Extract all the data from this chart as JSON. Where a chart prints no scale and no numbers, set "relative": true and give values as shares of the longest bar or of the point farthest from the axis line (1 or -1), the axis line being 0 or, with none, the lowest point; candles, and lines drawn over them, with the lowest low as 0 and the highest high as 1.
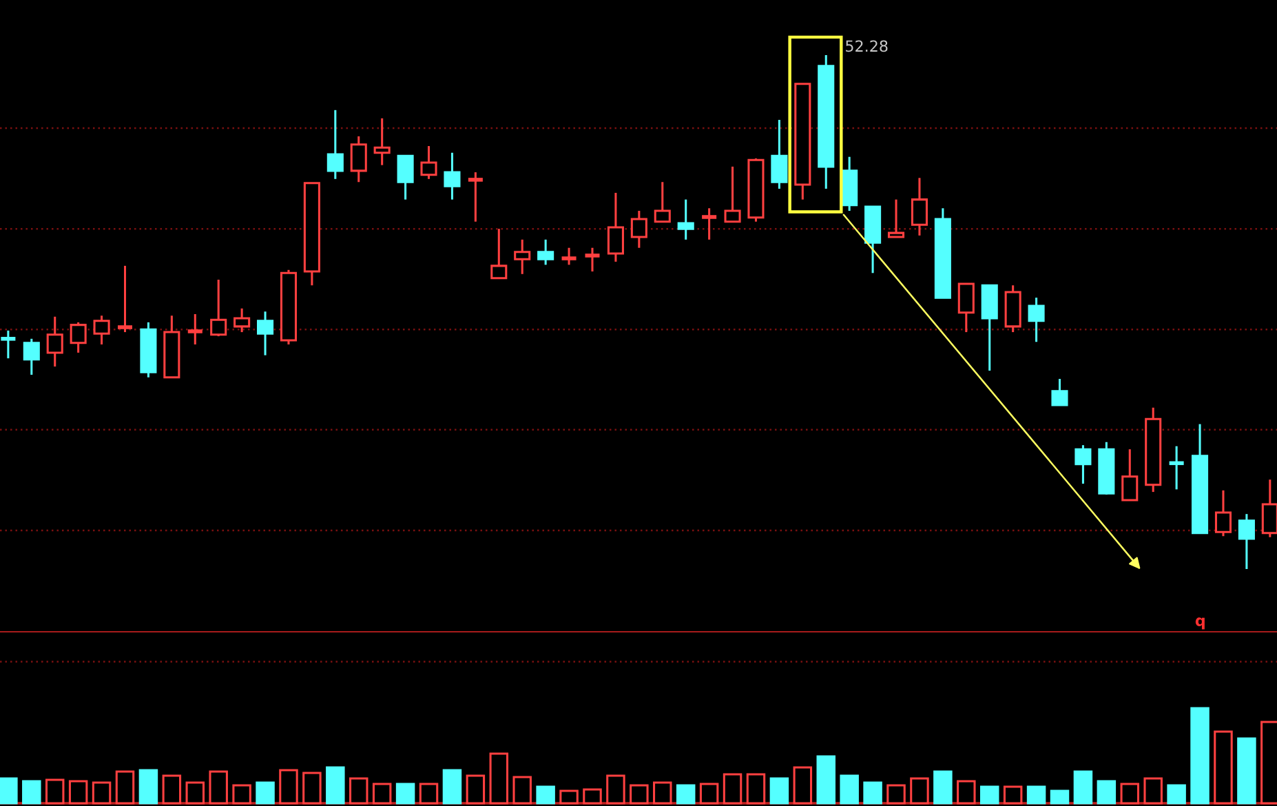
{
  "chart_data": [
    {
      "type": "candlestick",
      "relative": true,
      "categories": [
        null,
        null,
        null,
        null,
        null,
        null,
        null,
        null,
        null,
        null,
        null,
        null,
        null,
        null,
        null,
        null,
        null,
        null,
        null,
        null,
        null,
        null,
        null,
        null,
        null,
        null,
        null,
        null,
        null,
        null,
        null,
        null,
        null,
        null,
        null,
        null,
        null,
        null,
        null,
        null,
        null,
        null,
        null,
        null,
        null,
        null,
        null,
        null,
        null,
        null,
        null,
        null,
        null,
        null,
        null
      ],
      "ohlc": [
        [
          0.448,
          0.464,
          0.41,
          0.448
        ],
        [
          0.44,
          0.448,
          0.378,
          0.408
        ],
        [
          0.421,
          0.491,
          0.394,
          0.456
        ],
        [
          0.44,
          0.48,
          0.421,
          0.475
        ],
        [
          0.458,
          0.493,
          0.437,
          0.483
        ],
        [
          0.469,
          0.59,
          0.461,
          0.472
        ],
        [
          0.466,
          0.48,
          0.373,
          0.383
        ],
        [
          0.373,
          0.493,
          0.373,
          0.461
        ],
        [
          0.461,
          0.496,
          0.437,
          0.464
        ],
        [
          0.456,
          0.563,
          0.453,
          0.485
        ],
        [
          0.472,
          0.507,
          0.461,
          0.488
        ],
        [
          0.483,
          0.501,
          0.416,
          0.458
        ],
        [
          0.445,
          0.582,
          0.437,
          0.576
        ],
        [
          0.579,
          0.751,
          0.552,
          0.751
        ],
        [
          0.807,
          0.893,
          0.759,
          0.775
        ],
        [
          0.775,
          0.842,
          0.753,
          0.826
        ],
        [
          0.81,
          0.877,
          0.786,
          0.82
        ],
        [
          0.804,
          0.804,
          0.719,
          0.753
        ],
        [
          0.767,
          0.823,
          0.759,
          0.791
        ],
        [
          0.772,
          0.81,
          0.719,
          0.745
        ],
        [
          0.756,
          0.772,
          0.676,
          0.759
        ],
        [
          0.566,
          0.662,
          0.566,
          0.59
        ],
        [
          0.603,
          0.641,
          0.574,
          0.617
        ],
        [
          0.617,
          0.641,
          0.592,
          0.603
        ],
        [
          0.603,
          0.625,
          0.592,
          0.606
        ],
        [
          0.609,
          0.625,
          0.579,
          0.611
        ],
        [
          0.614,
          0.732,
          0.598,
          0.665
        ],
        [
          0.646,
          0.697,
          0.625,
          0.681
        ],
        [
          0.676,
          0.753,
          0.676,
          0.697
        ],
        [
          0.673,
          0.719,
          0.641,
          0.662
        ],
        [
          0.684,
          0.702,
          0.641,
          0.686
        ],
        [
          0.676,
          0.783,
          0.676,
          0.697
        ],
        [
          0.684,
          0.799,
          0.676,
          0.796
        ],
        [
          0.804,
          0.874,
          0.74,
          0.753
        ],
        [
          0.748,
          0.944,
          0.719,
          0.944
        ],
        [
          0.979,
          1.0,
          0.74,
          0.783
        ],
        [
          0.775,
          0.802,
          0.697,
          0.708
        ],
        [
          0.705,
          0.705,
          0.576,
          0.635
        ],
        [
          0.646,
          0.719,
          0.646,
          0.654
        ],
        [
          0.67,
          0.761,
          0.649,
          0.719
        ],
        [
          0.681,
          0.702,
          0.528,
          0.528
        ],
        [
          0.499,
          0.555,
          0.461,
          0.555
        ],
        [
          0.552,
          0.552,
          0.386,
          0.488
        ],
        [
          0.472,
          0.552,
          0.461,
          0.539
        ],
        [
          0.512,
          0.528,
          0.442,
          0.483
        ],
        [
          0.346,
          0.37,
          0.319,
          0.319
        ],
        [
          0.233,
          0.241,
          0.166,
          0.204
        ],
        [
          0.233,
          0.247,
          0.145,
          0.147
        ],
        [
          0.134,
          0.233,
          0.134,
          0.18
        ],
        [
          0.164,
          0.314,
          0.15,
          0.292
        ],
        [
          0.206,
          0.239,
          0.155,
          0.206
        ],
        [
          0.22,
          0.282,
          0.07,
          0.07
        ],
        [
          0.072,
          0.153,
          0.064,
          0.11
        ],
        [
          0.094,
          0.107,
          0.0,
          0.059
        ],
        [
          0.07,
          0.174,
          0.062,
          0.126
        ]
      ],
      "colors": [
        "#54ffff",
        "#54ffff",
        "#ff4040",
        "#ff4040",
        "#ff4040",
        "#ff4040",
        "#54ffff",
        "#ff4040",
        "#ff4040",
        "#ff4040",
        "#ff4040",
        "#54ffff",
        "#ff4040",
        "#ff4040",
        "#54ffff",
        "#ff4040",
        "#ff4040",
        "#54ffff",
        "#ff4040",
        "#54ffff",
        "#ff4040",
        "#ff4040",
        "#ff4040",
        "#54ffff",
        "#ff4040",
        "#ff4040",
        "#ff4040",
        "#ff4040",
        "#ff4040",
        "#54ffff",
        "#ff4040",
        "#ff4040",
        "#ff4040",
        "#54ffff",
        "#ff4040",
        "#54ffff",
        "#54ffff",
        "#54ffff",
        "#ff4040",
        "#ff4040",
        "#54ffff",
        "#ff4040",
        "#54ffff",
        "#ff4040",
        "#54ffff",
        "#54ffff",
        "#54ffff",
        "#54ffff",
        "#ff4040",
        "#ff4040",
        "#54ffff",
        "#54ffff",
        "#ff4040",
        "#54ffff",
        "#ff4040"
      ],
      "annotations": [
        "52.28",
        "q"
      ],
      "ref_lines": [
        {
          "axis": "y",
          "value": 0.075,
          "color": "#7a1010",
          "line_style": "dotted"
        },
        {
          "axis": "y",
          "value": 0.271,
          "color": "#7a1010",
          "line_style": "dotted"
        },
        {
          "axis": "y",
          "value": 0.466,
          "color": "#7a1010",
          "line_style": "dotted"
        },
        {
          "axis": "y",
          "value": 0.662,
          "color": "#7a1010",
          "line_style": "dotted"
        },
        {
          "axis": "y",
          "value": 0.858,
          "color": "#7a1010",
          "line_style": "dotted"
        }
      ]
    },
    {
      "type": "bar",
      "relative": true,
      "ref_lines": [
        {
          "axis": "y",
          "value": 1.49,
          "color": "#7a1010",
          "line_style": "dotted"
        }
      ],
      "categories": [
        null,
        null,
        null,
        null,
        null,
        null,
        null,
        null,
        null,
        null,
        null,
        null,
        null,
        null,
        null,
        null,
        null,
        null,
        null,
        null,
        null,
        null,
        null,
        null,
        null,
        null,
        null,
        null,
        null,
        null,
        null,
        null,
        null,
        null,
        null,
        null,
        null,
        null,
        null,
        null,
        null,
        null,
        null,
        null,
        null,
        null,
        null,
        null,
        null,
        null,
        null,
        null,
        null,
        null,
        null
      ],
      "values": [
        0.261,
        0.232,
        0.246,
        0.232,
        0.217,
        0.333,
        0.348,
        0.29,
        0.217,
        0.333,
        0.188,
        0.217,
        0.348,
        0.319,
        0.377,
        0.261,
        0.203,
        0.203,
        0.203,
        0.348,
        0.29,
        0.522,
        0.275,
        0.174,
        0.13,
        0.145,
        0.29,
        0.188,
        0.217,
        0.188,
        0.203,
        0.304,
        0.304,
        0.261,
        0.377,
        0.493,
        0.29,
        0.217,
        0.188,
        0.261,
        0.333,
        0.232,
        0.174,
        0.174,
        0.174,
        0.13,
        0.333,
        0.232,
        0.203,
        0.261,
        0.188,
        1.0,
        0.754,
        0.681,
        0.855
      ],
      "colors": [
        "#54ffff",
        "#54ffff",
        "#ff4040",
        "#ff4040",
        "#ff4040",
        "#ff4040",
        "#54ffff",
        "#ff4040",
        "#ff4040",
        "#ff4040",
        "#ff4040",
        "#54ffff",
        "#ff4040",
        "#ff4040",
        "#54ffff",
        "#ff4040",
        "#ff4040",
        "#54ffff",
        "#ff4040",
        "#54ffff",
        "#ff4040",
        "#ff4040",
        "#ff4040",
        "#54ffff",
        "#ff4040",
        "#ff4040",
        "#ff4040",
        "#ff4040",
        "#ff4040",
        "#54ffff",
        "#ff4040",
        "#ff4040",
        "#ff4040",
        "#54ffff",
        "#ff4040",
        "#54ffff",
        "#54ffff",
        "#54ffff",
        "#ff4040",
        "#ff4040",
        "#54ffff",
        "#ff4040",
        "#54ffff",
        "#ff4040",
        "#54ffff",
        "#54ffff",
        "#54ffff",
        "#54ffff",
        "#ff4040",
        "#ff4040",
        "#54ffff",
        "#54ffff",
        "#ff4040",
        "#54ffff",
        "#ff4040"
      ]
    }
  ]
}
